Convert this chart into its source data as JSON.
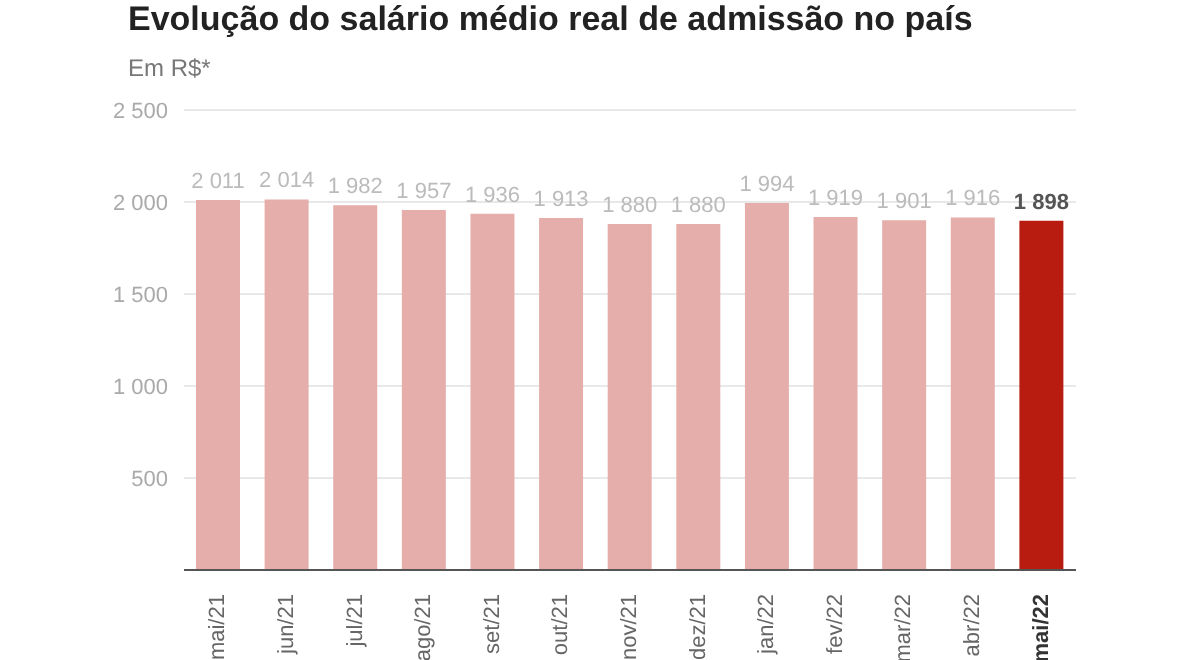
{
  "chart_data": {
    "type": "bar",
    "title": "Evolução do salário médio real de admissão no país",
    "subtitle": "Em R$*",
    "categories": [
      "mai/21",
      "jun/21",
      "jul/21",
      "ago/21",
      "set/21",
      "out/21",
      "nov/21",
      "dez/21",
      "jan/22",
      "fev/22",
      "mar/22",
      "abr/22",
      "mai/22"
    ],
    "values": [
      2011,
      2014,
      1982,
      1957,
      1936,
      1913,
      1880,
      1880,
      1994,
      1919,
      1901,
      1916,
      1898
    ],
    "value_labels": [
      "2 011",
      "2 014",
      "1 982",
      "1 957",
      "1 936",
      "1 913",
      "1 880",
      "1 880",
      "1 994",
      "1 919",
      "1 901",
      "1 916",
      "1 898"
    ],
    "colors": [
      "#e5aeab",
      "#e5aeab",
      "#e5aeab",
      "#e5aeab",
      "#e5aeab",
      "#e5aeab",
      "#e5aeab",
      "#e5aeab",
      "#e5aeab",
      "#e5aeab",
      "#e5aeab",
      "#e5aeab",
      "#b81c10"
    ],
    "ylim": [
      0,
      2500
    ],
    "yticks": [
      {
        "value": 0,
        "label": null
      },
      {
        "value": 500,
        "label": "500"
      },
      {
        "value": 1000,
        "label": "1 000"
      },
      {
        "value": 1500,
        "label": "1 500"
      },
      {
        "value": 2000,
        "label": "2 000"
      },
      {
        "value": 2500,
        "label": "2 500"
      }
    ],
    "grid": "y"
  }
}
